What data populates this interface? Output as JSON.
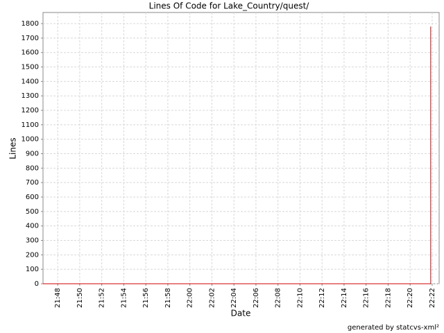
{
  "chart_data": {
    "type": "line",
    "title": "Lines Of Code for Lake_Country/quest/",
    "x_label": "Date",
    "y_label": "Lines",
    "footer": "generated by statcvs-xml²",
    "x": [
      "21:46:40",
      "22:21:52",
      "22:21:52"
    ],
    "series": [
      {
        "name": "Lines",
        "color": "#cc0000",
        "values": [
          0,
          0,
          1780
        ]
      }
    ],
    "xlim": [
      "21:46:40",
      "22:22:38"
    ],
    "xticks": [
      "21:48",
      "21:50",
      "21:52",
      "21:54",
      "21:56",
      "21:58",
      "22:00",
      "22:02",
      "22:04",
      "22:06",
      "22:08",
      "22:10",
      "22:12",
      "22:14",
      "22:16",
      "22:18",
      "22:20",
      "22:22"
    ],
    "ylim": [
      0,
      1877
    ],
    "yticks": [
      0,
      100,
      200,
      300,
      400,
      500,
      600,
      700,
      800,
      900,
      1000,
      1100,
      1200,
      1300,
      1400,
      1500,
      1600,
      1700,
      1800
    ],
    "grid": true
  }
}
